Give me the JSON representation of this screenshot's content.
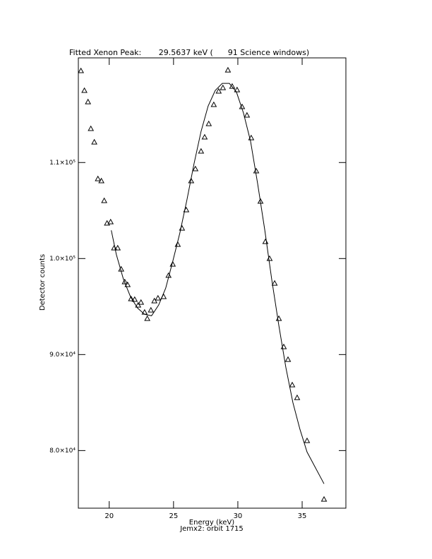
{
  "chart_data": {
    "type": "scatter",
    "title": "Fitted Xenon Peak:       29.5637 keV (      91 Science windows)",
    "x_label": "Energy (keV)",
    "subtitle": "Jemx2: orbit 1715",
    "y_label": "Detector counts",
    "xlim": [
      17.6,
      38.4
    ],
    "ylim": [
      74000,
      120900
    ],
    "xticks": [
      20,
      25,
      30,
      35
    ],
    "yticks": [
      {
        "value": 80000,
        "label": "8.0×10⁴"
      },
      {
        "value": 90000,
        "label": "9.0×10⁴"
      },
      {
        "value": 100000,
        "label": "1.0×10⁵"
      },
      {
        "value": 110000,
        "label": "1.1×10⁵"
      }
    ],
    "series": [
      {
        "mode": "markers",
        "marker": "triangle",
        "color": "#000000",
        "x": [
          17.8,
          18.07,
          18.35,
          18.57,
          18.84,
          19.12,
          19.39,
          19.61,
          19.83,
          20.11,
          20.38,
          20.66,
          20.93,
          21.21,
          21.43,
          21.7,
          21.98,
          22.25,
          22.47,
          22.75,
          22.96,
          23.24,
          23.51,
          23.79,
          24.23,
          24.61,
          24.94,
          25.33,
          25.66,
          25.99,
          26.37,
          26.7,
          27.14,
          27.42,
          27.74,
          28.13,
          28.51,
          28.84,
          29.23,
          29.56,
          29.94,
          30.33,
          30.71,
          31.04,
          31.43,
          31.76,
          32.14,
          32.47,
          32.86,
          33.19,
          33.57,
          33.9,
          34.23,
          34.61,
          35.38,
          36.7
        ],
        "values": [
          119560,
          117500,
          116320,
          113530,
          112130,
          108310,
          108090,
          106030,
          103680,
          103820,
          101100,
          101100,
          98900,
          97570,
          97280,
          95810,
          95740,
          95150,
          95440,
          94410,
          93750,
          94630,
          95590,
          95880,
          96030,
          98240,
          99410,
          101470,
          103160,
          105070,
          108090,
          109340,
          111180,
          112650,
          114040,
          116030,
          117430,
          117790,
          119630,
          117940,
          117570,
          115810,
          114930,
          112570,
          109120,
          105960,
          101760,
          100000,
          97430,
          93750,
          90810,
          89490,
          86840,
          85510,
          81030,
          74930
        ]
      },
      {
        "mode": "line",
        "color": "#000000",
        "x": [
          20.16,
          20.55,
          21.1,
          21.65,
          22.2,
          22.75,
          23.29,
          23.84,
          24.39,
          24.94,
          25.49,
          26.04,
          26.59,
          27.14,
          27.69,
          28.24,
          28.79,
          29.34,
          29.89,
          30.44,
          30.99,
          31.54,
          32.09,
          32.63,
          33.18,
          33.73,
          34.28,
          34.83,
          35.38,
          36.7
        ],
        "values": [
          102940,
          100440,
          97870,
          96030,
          94850,
          94190,
          94040,
          95150,
          96910,
          99710,
          102650,
          106100,
          109850,
          113240,
          115880,
          117500,
          118240,
          118240,
          117350,
          115150,
          112210,
          107790,
          103010,
          97870,
          93090,
          88680,
          85000,
          82210,
          79850,
          76540
        ]
      }
    ]
  }
}
